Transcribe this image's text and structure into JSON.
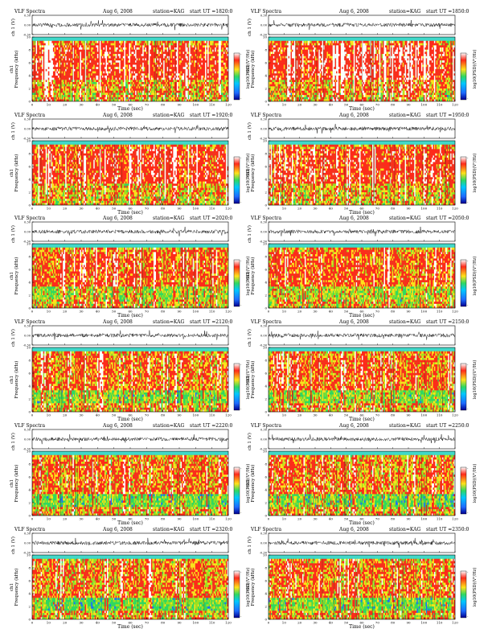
{
  "chart_data": {
    "type": "heatmap",
    "panel_labels": {
      "title_left": "VLF Spectra",
      "date": "Aug 6, 2008",
      "station": "station=KAG",
      "start_prefix": "start  UT  =",
      "waveform_ylabel": "ch 1 (V)",
      "spectrogram_ylabel_channel": "ch1",
      "spectrogram_ylabel": "Frequency  (kHz)",
      "xlabel": "Time  (sec)",
      "colorbar_label": "log10(PSD)(V²/Hz)"
    },
    "waveform_yticks": [
      "0.30",
      "0.00",
      "-0.30"
    ],
    "waveform_ylim": [
      -0.3,
      0.3
    ],
    "freq_yticks": [
      "0",
      "2",
      "4",
      "6",
      "8",
      "10"
    ],
    "freq_ylim_khz": [
      0,
      10
    ],
    "time_xticks": [
      "0",
      "10",
      "20",
      "30",
      "40",
      "50",
      "60",
      "70",
      "80",
      "90",
      "100",
      "110",
      "120"
    ],
    "time_xlim_sec": [
      0,
      120
    ],
    "colorbar_tick": "-",
    "colors": {
      "background_band": "#41d8c9",
      "low": "#1e6bff",
      "mid": "#30d860",
      "upper_mid": "#9fe020",
      "high": "#ffe21a",
      "max": "#ff2a1a",
      "saturated": "#ffffff"
    },
    "panels": [
      {
        "start_ut": "1820:0",
        "activity": 0.95
      },
      {
        "start_ut": "1850:0",
        "activity": 0.95
      },
      {
        "start_ut": "1920:0",
        "activity": 0.9
      },
      {
        "start_ut": "1950:0",
        "activity": 0.9
      },
      {
        "start_ut": "2020:0",
        "activity": 0.7
      },
      {
        "start_ut": "2050:0",
        "activity": 0.7
      },
      {
        "start_ut": "2120:0",
        "activity": 0.55
      },
      {
        "start_ut": "2150:0",
        "activity": 0.55
      },
      {
        "start_ut": "2220:0",
        "activity": 0.5
      },
      {
        "start_ut": "2250:0",
        "activity": 0.5
      },
      {
        "start_ut": "2320:0",
        "activity": 0.5
      },
      {
        "start_ut": "2350:0",
        "activity": 0.5
      }
    ]
  }
}
